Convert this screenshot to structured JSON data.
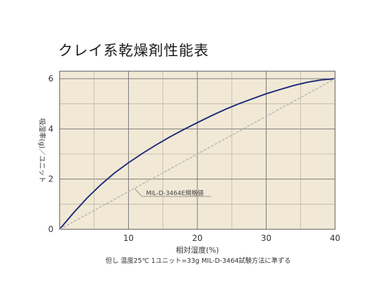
{
  "chart_data": {
    "type": "line",
    "title": "クレイ系乾燥剤性能表",
    "xlabel": "相対湿度(%)",
    "ylabel": "吸湿率(g)／ユニット",
    "xlim": [
      0,
      40
    ],
    "ylim": [
      0,
      6.3
    ],
    "x_ticks": [
      "10",
      "20",
      "30",
      "40"
    ],
    "y_ticks": [
      "0",
      "2",
      "4",
      "6"
    ],
    "grid": true,
    "background": "#f1e9d6",
    "series": [
      {
        "name": "",
        "color": "#1f2f7a",
        "style": "solid",
        "x": [
          0,
          2,
          4,
          6,
          8,
          10,
          12,
          14,
          16,
          18,
          20,
          22,
          24,
          26,
          28,
          30,
          32,
          34,
          36,
          38,
          40
        ],
        "y": [
          0,
          0.65,
          1.25,
          1.78,
          2.25,
          2.65,
          3.02,
          3.36,
          3.68,
          3.97,
          4.25,
          4.52,
          4.77,
          5.0,
          5.2,
          5.4,
          5.57,
          5.73,
          5.86,
          5.95,
          6.0
        ]
      },
      {
        "name": "MIL-D-3464E規格値",
        "color": "#b5b5b5",
        "style": "dashed",
        "x": [
          0,
          40
        ],
        "y": [
          0,
          6.0
        ]
      }
    ],
    "annotation": "MIL-D-3464E規格値",
    "note": "但し 温度25℃ 1ユニット=33g MIL-D-3464試験方法に準ずる"
  }
}
